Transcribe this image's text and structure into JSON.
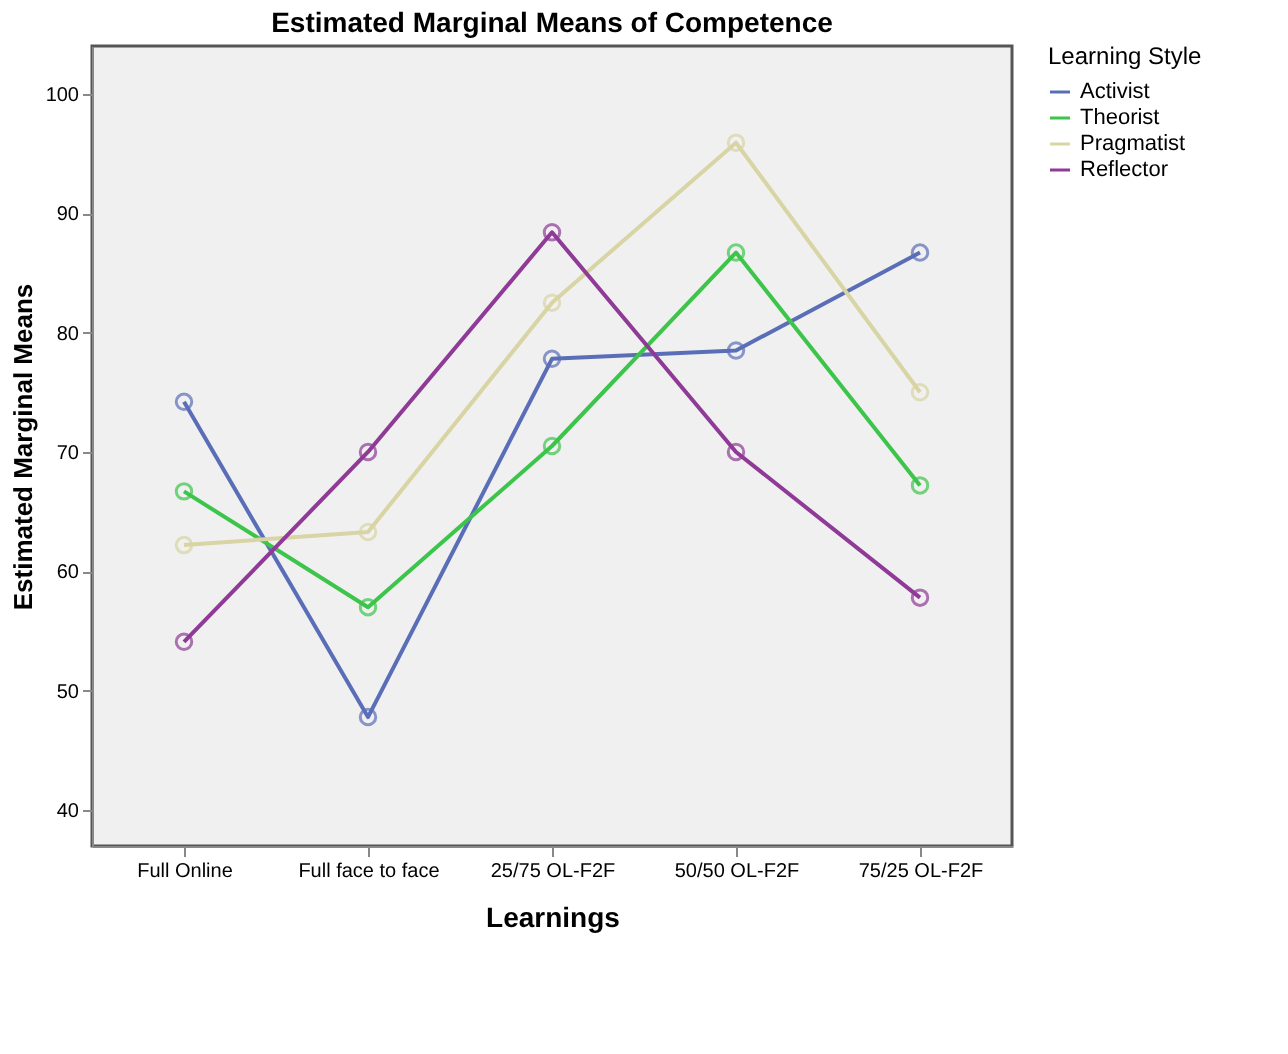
{
  "chart_data": {
    "type": "line",
    "title": "Estimated Marginal Means of Competence",
    "xlabel": "Learnings",
    "ylabel": "Estimated Marginal Means",
    "legend_title": "Learning Style",
    "categories": [
      "Full Online",
      "Full face to face",
      "25/75 OL-F2F",
      "50/50 OL-F2F",
      "75/25 OL-F2F"
    ],
    "series": [
      {
        "name": "Activist",
        "color": "#5a6eb8",
        "values": [
          74.2,
          47.8,
          77.8,
          78.5,
          86.7
        ]
      },
      {
        "name": "Theorist",
        "color": "#3dc44a",
        "values": [
          66.7,
          57.0,
          70.5,
          86.7,
          67.2
        ]
      },
      {
        "name": "Pragmatist",
        "color": "#d8d4a4",
        "values": [
          62.2,
          63.3,
          82.5,
          95.9,
          75.0
        ]
      },
      {
        "name": "Reflector",
        "color": "#8e3a96",
        "values": [
          54.1,
          70.0,
          88.4,
          70.0,
          57.8
        ]
      }
    ],
    "ylim": [
      37,
      104
    ],
    "yticks": [
      40,
      50,
      60,
      70,
      80,
      90,
      100
    ],
    "grid": false,
    "legend": "top right",
    "marker": "circle",
    "line_style": "solid"
  }
}
